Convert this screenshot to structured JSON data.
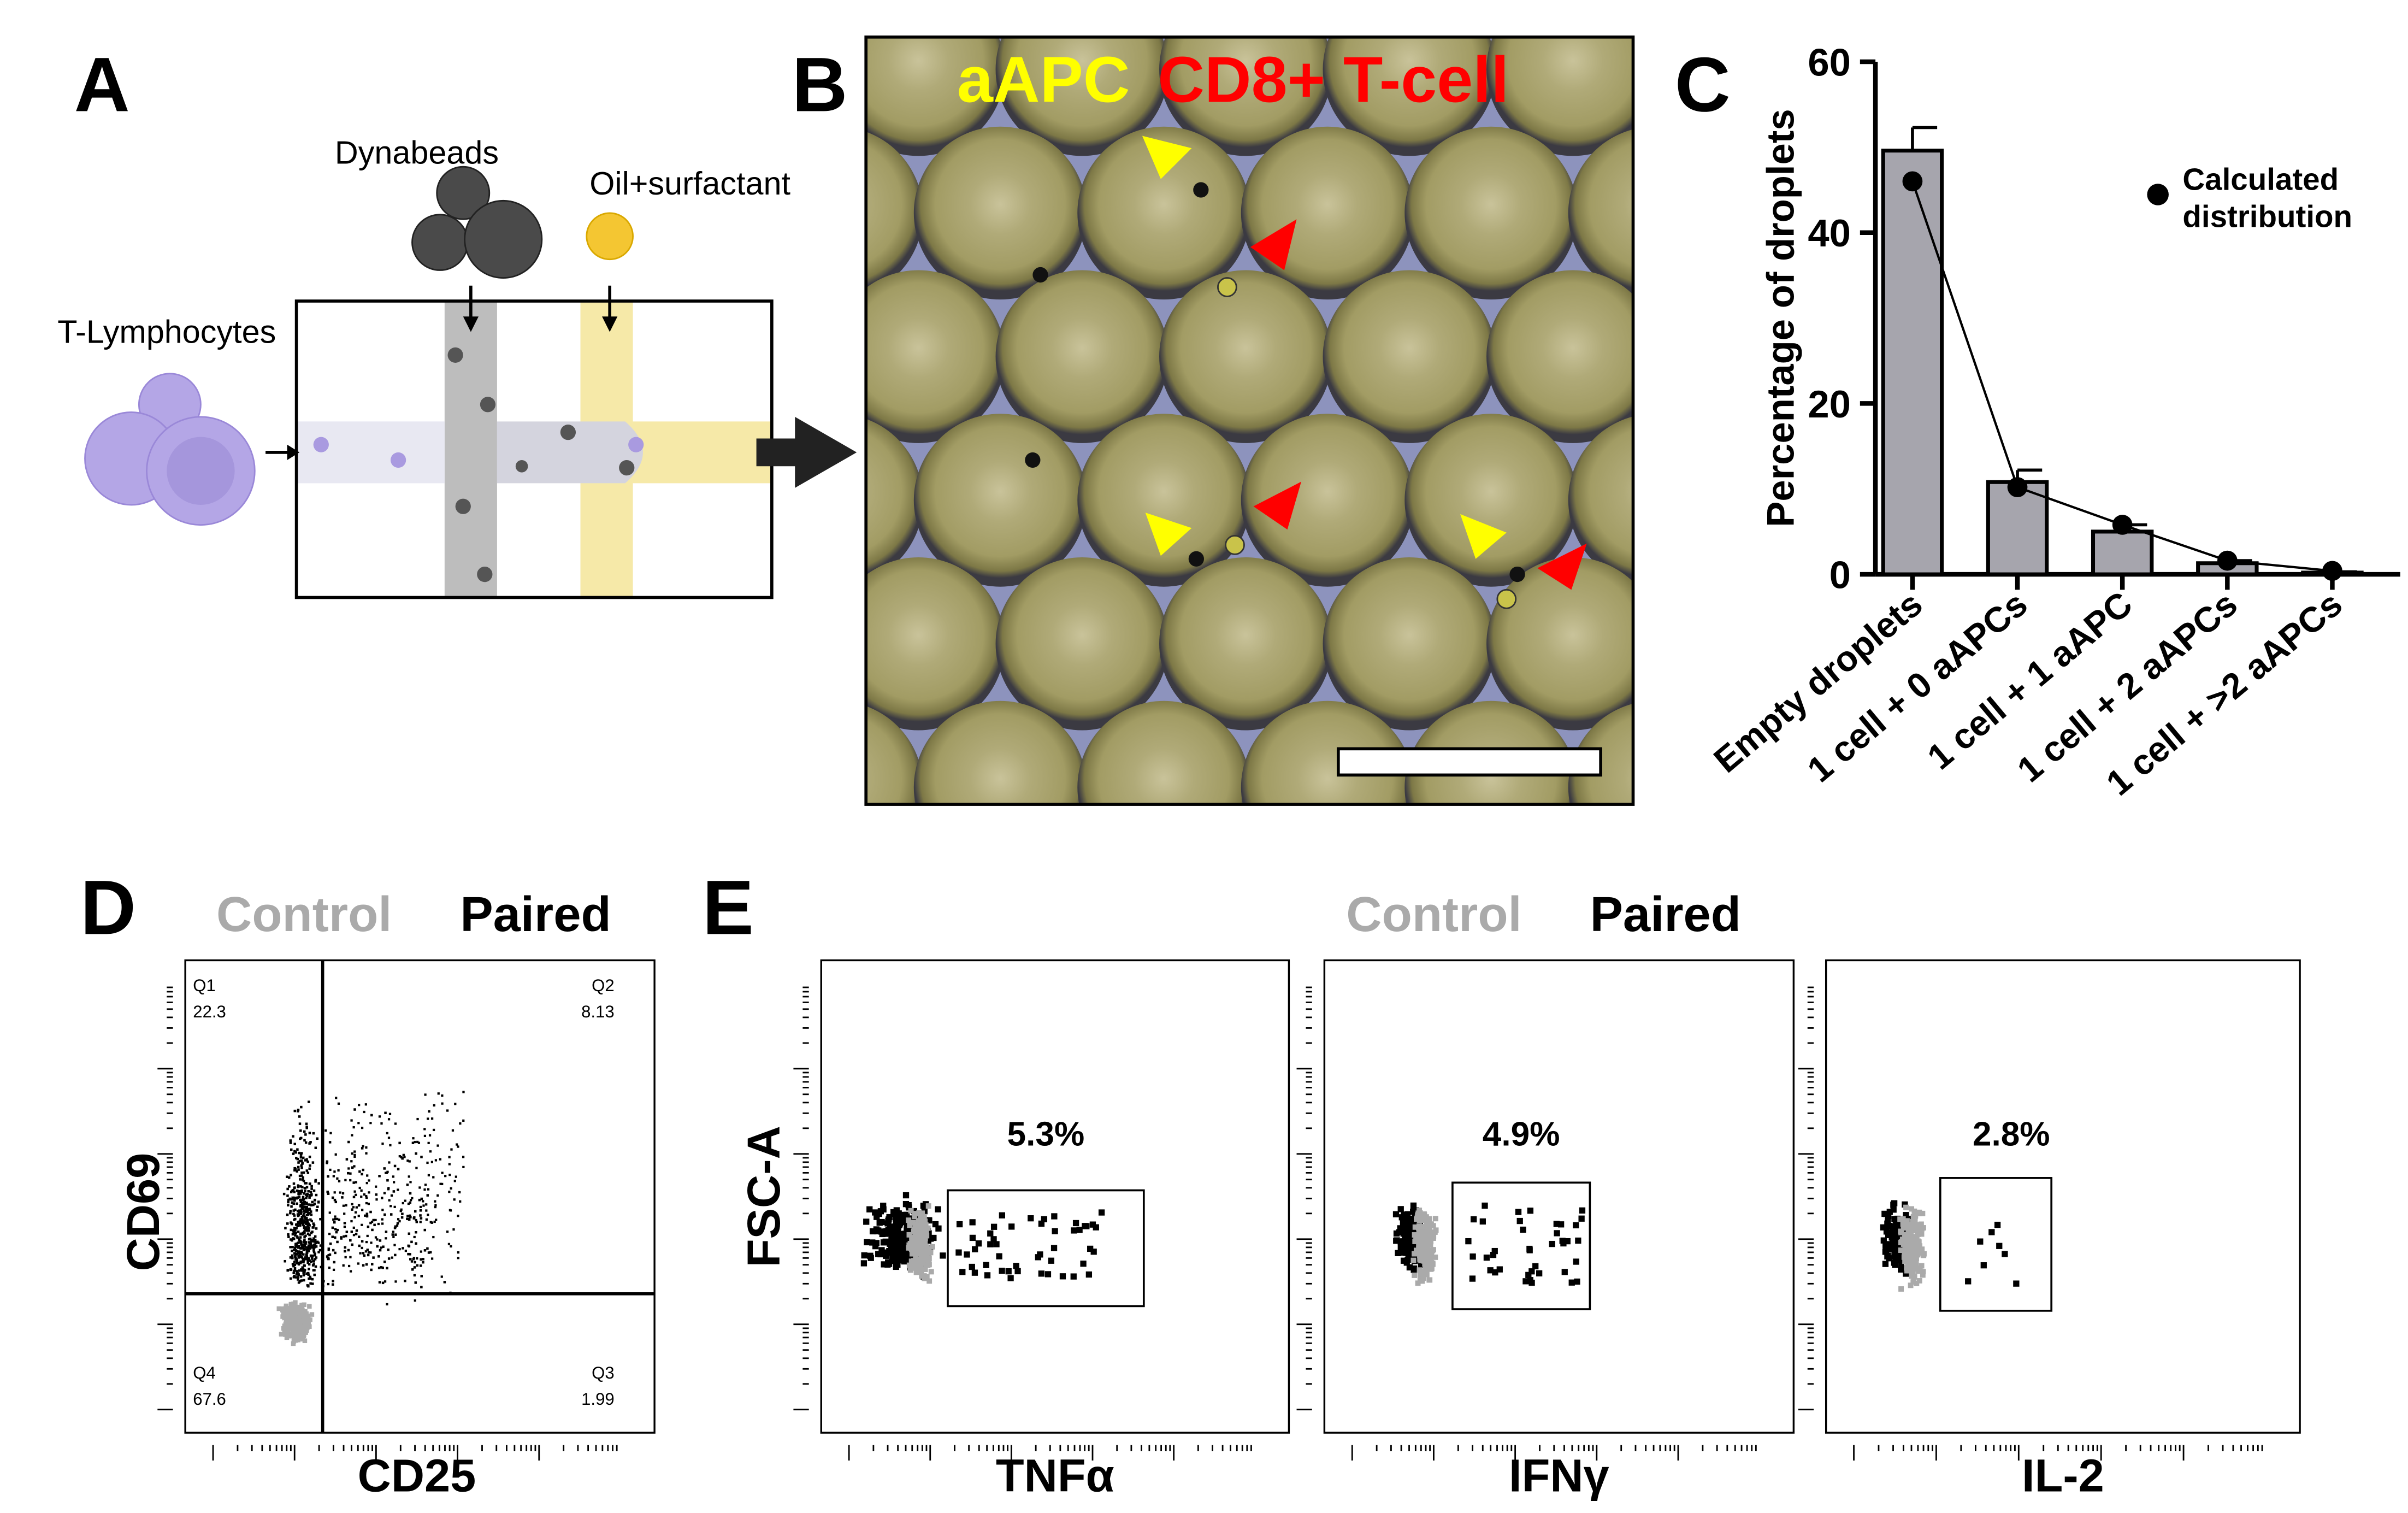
{
  "panels": {
    "A": {
      "label": "A",
      "dynabeads": "Dynabeads",
      "oil": "Oil+surfactant",
      "cells": "T-Lymphocytes"
    },
    "B": {
      "label": "B",
      "legend_1": "aAPC",
      "legend_2": "CD8+ T-cell"
    },
    "D": {
      "label": "D",
      "control": "Control",
      "paired": "Paired",
      "ylabel": "CD69",
      "xlabel": "CD25",
      "quadrants": [
        {
          "name": "Q1",
          "value": 22.3
        },
        {
          "name": "Q2",
          "value": 8.13
        },
        {
          "name": "Q4",
          "value": 67.6
        },
        {
          "name": "Q3",
          "value": 1.99
        }
      ]
    },
    "E": {
      "label": "E",
      "control": "Control",
      "paired": "Paired",
      "ylabel": "FSC-A",
      "plots": [
        {
          "xlabel": "TNFα",
          "gate": "5.3%"
        },
        {
          "xlabel": "IFNγ",
          "gate": "4.9%"
        },
        {
          "xlabel": "IL-2",
          "gate": "2.8%"
        }
      ]
    }
  },
  "chart_data": {
    "type": "bar",
    "panel_label": "C",
    "ylabel": "Percentage of droplets",
    "categories": [
      "Empty droplets",
      "1 cell + 0 aAPCs",
      "1 cell + 1 aAPC",
      "1 cell + 2 aAPCs",
      "1 cell + >2 aAPCs"
    ],
    "values": [
      49.6,
      10.8,
      5.0,
      1.3,
      0.2
    ],
    "errors": [
      2.7,
      1.4,
      0.8,
      0.3,
      0.1
    ],
    "color": "#a6a5ad",
    "line": {
      "name": "Calculated distribution",
      "values": [
        46,
        10.2,
        5.8,
        1.6,
        0.4
      ],
      "color": "#000000"
    },
    "ylim": [
      0,
      60
    ],
    "yticks": [
      0,
      20,
      40,
      60
    ]
  }
}
